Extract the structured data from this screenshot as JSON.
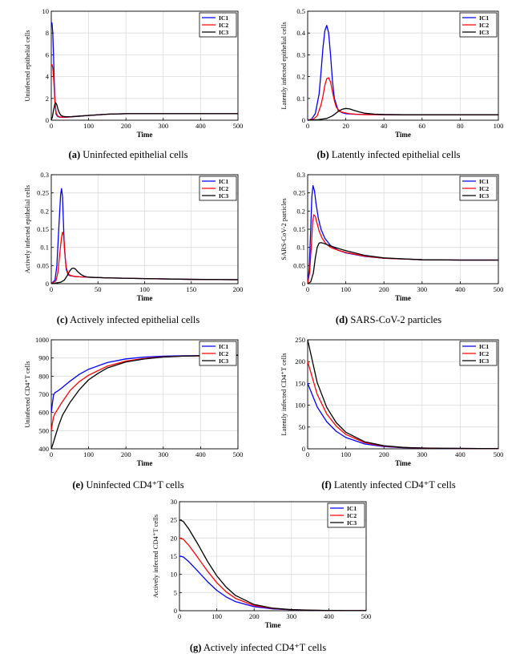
{
  "colors": {
    "IC1": "#0000ff",
    "IC2": "#ff0000",
    "IC3": "#000000"
  },
  "chart_data": [
    {
      "id": "a",
      "type": "line",
      "caption_label": "(a)",
      "caption_text": "Uninfected epithelial cells",
      "xlabel": "Time",
      "ylabel": "Uninfected epithelial cells",
      "xlim": [
        0,
        500
      ],
      "ylim": [
        0,
        10
      ],
      "xticks": [
        0,
        100,
        200,
        300,
        400,
        500
      ],
      "yticks": [
        0,
        2,
        4,
        6,
        8,
        10
      ],
      "legend": [
        "IC1",
        "IC2",
        "IC3"
      ],
      "series": [
        {
          "name": "IC1",
          "x": [
            0,
            2,
            4,
            6,
            8,
            10,
            13,
            17,
            22,
            30,
            45,
            70,
            100,
            150,
            200,
            300,
            400,
            500
          ],
          "y": [
            9.0,
            8.9,
            8.0,
            6.0,
            3.5,
            1.6,
            0.55,
            0.35,
            0.28,
            0.27,
            0.29,
            0.35,
            0.43,
            0.55,
            0.6,
            0.6,
            0.6,
            0.6
          ]
        },
        {
          "name": "IC2",
          "x": [
            0,
            2,
            4,
            6,
            8,
            10,
            13,
            17,
            22,
            30,
            45,
            70,
            100,
            150,
            200,
            300,
            400,
            500
          ],
          "y": [
            5.0,
            5.1,
            4.8,
            4.0,
            2.8,
            1.6,
            0.7,
            0.4,
            0.3,
            0.28,
            0.3,
            0.36,
            0.44,
            0.55,
            0.6,
            0.6,
            0.6,
            0.6
          ]
        },
        {
          "name": "IC3",
          "x": [
            0,
            3,
            6,
            9,
            12,
            15,
            18,
            22,
            26,
            32,
            40,
            55,
            75,
            100,
            150,
            200,
            300,
            400,
            500
          ],
          "y": [
            0.0,
            0.3,
            0.9,
            1.4,
            1.6,
            1.4,
            1.0,
            0.65,
            0.45,
            0.35,
            0.32,
            0.33,
            0.38,
            0.44,
            0.55,
            0.6,
            0.6,
            0.6,
            0.6
          ]
        }
      ]
    },
    {
      "id": "b",
      "type": "line",
      "caption_label": "(b)",
      "caption_text": "Latently infected epithelial cells",
      "xlabel": "Time",
      "ylabel": "Latently infected epithelial cells",
      "xlim": [
        0,
        100
      ],
      "ylim": [
        0,
        0.5
      ],
      "xticks": [
        0,
        20,
        40,
        60,
        80,
        100
      ],
      "yticks": [
        0,
        0.1,
        0.2,
        0.3,
        0.4,
        0.5
      ],
      "legend": [
        "IC1",
        "IC2",
        "IC3"
      ],
      "series": [
        {
          "name": "IC1",
          "x": [
            0,
            2,
            4,
            6,
            7,
            8,
            9,
            10,
            11,
            12,
            13,
            14,
            16,
            18,
            20,
            25,
            30,
            50,
            100
          ],
          "y": [
            0.0,
            0.005,
            0.03,
            0.12,
            0.22,
            0.33,
            0.41,
            0.435,
            0.4,
            0.3,
            0.18,
            0.1,
            0.045,
            0.035,
            0.03,
            0.027,
            0.026,
            0.025,
            0.025
          ]
        },
        {
          "name": "IC2",
          "x": [
            0,
            3,
            5,
            7,
            8,
            9,
            10,
            11,
            12,
            13,
            14,
            15,
            17,
            19,
            22,
            26,
            30,
            50,
            100
          ],
          "y": [
            0.0,
            0.005,
            0.02,
            0.07,
            0.11,
            0.16,
            0.19,
            0.195,
            0.175,
            0.13,
            0.09,
            0.06,
            0.04,
            0.035,
            0.03,
            0.027,
            0.026,
            0.025,
            0.025
          ]
        },
        {
          "name": "IC3",
          "x": [
            0,
            5,
            10,
            13,
            16,
            18,
            20,
            22,
            24,
            27,
            30,
            35,
            40,
            50,
            100
          ],
          "y": [
            0.0,
            0.002,
            0.008,
            0.02,
            0.04,
            0.05,
            0.054,
            0.052,
            0.046,
            0.038,
            0.032,
            0.028,
            0.026,
            0.025,
            0.025
          ]
        }
      ]
    },
    {
      "id": "c",
      "type": "line",
      "caption_label": "(c)",
      "caption_text": "Actively infected epithelial cells",
      "xlabel": "Time",
      "ylabel": "Actively infected epithelial cells",
      "xlim": [
        0,
        200
      ],
      "ylim": [
        0,
        0.3
      ],
      "xticks": [
        0,
        50,
        100,
        150,
        200
      ],
      "yticks": [
        0,
        0.05,
        0.1,
        0.15,
        0.2,
        0.25,
        0.3
      ],
      "legend": [
        "IC1",
        "IC2",
        "IC3"
      ],
      "series": [
        {
          "name": "IC1",
          "x": [
            0,
            4,
            6,
            8,
            10,
            11,
            12,
            13,
            14,
            16,
            18,
            20,
            25,
            30,
            40,
            60,
            100,
            150,
            200
          ],
          "y": [
            0.0,
            0.01,
            0.05,
            0.15,
            0.245,
            0.262,
            0.24,
            0.17,
            0.1,
            0.04,
            0.025,
            0.022,
            0.02,
            0.019,
            0.018,
            0.016,
            0.014,
            0.012,
            0.011
          ]
        },
        {
          "name": "IC2",
          "x": [
            0,
            5,
            7,
            9,
            11,
            12,
            13,
            14,
            15,
            16,
            18,
            20,
            25,
            30,
            40,
            60,
            100,
            150,
            200
          ],
          "y": [
            0.0,
            0.008,
            0.03,
            0.08,
            0.128,
            0.142,
            0.135,
            0.11,
            0.07,
            0.045,
            0.028,
            0.023,
            0.02,
            0.019,
            0.018,
            0.016,
            0.014,
            0.012,
            0.011
          ]
        },
        {
          "name": "IC3",
          "x": [
            0,
            10,
            14,
            17,
            20,
            22,
            24,
            26,
            28,
            32,
            36,
            40,
            50,
            60,
            100,
            150,
            200
          ],
          "y": [
            0.0,
            0.004,
            0.01,
            0.022,
            0.036,
            0.042,
            0.043,
            0.04,
            0.034,
            0.025,
            0.02,
            0.018,
            0.017,
            0.016,
            0.014,
            0.012,
            0.011
          ]
        }
      ]
    },
    {
      "id": "d",
      "type": "line",
      "caption_label": "(d)",
      "caption_text": "SARS-CoV-2 particles",
      "xlabel": "Time",
      "ylabel": "SARS-CoV-2 particles",
      "xlim": [
        0,
        500
      ],
      "ylim": [
        0,
        0.3
      ],
      "xticks": [
        0,
        100,
        200,
        300,
        400,
        500
      ],
      "yticks": [
        0,
        0.05,
        0.1,
        0.15,
        0.2,
        0.25,
        0.3
      ],
      "legend": [
        "IC1",
        "IC2",
        "IC3"
      ],
      "series": [
        {
          "name": "IC1",
          "x": [
            0,
            4,
            8,
            11,
            14,
            18,
            22,
            28,
            35,
            45,
            60,
            80,
            100,
            150,
            200,
            300,
            400,
            500
          ],
          "y": [
            0.0,
            0.04,
            0.15,
            0.24,
            0.27,
            0.255,
            0.22,
            0.18,
            0.15,
            0.125,
            0.105,
            0.092,
            0.085,
            0.075,
            0.07,
            0.066,
            0.065,
            0.065
          ]
        },
        {
          "name": "IC2",
          "x": [
            0,
            5,
            10,
            13,
            16,
            20,
            25,
            30,
            38,
            48,
            60,
            80,
            100,
            150,
            200,
            300,
            400,
            500
          ],
          "y": [
            0.0,
            0.03,
            0.11,
            0.17,
            0.19,
            0.185,
            0.165,
            0.145,
            0.125,
            0.11,
            0.1,
            0.092,
            0.086,
            0.076,
            0.07,
            0.066,
            0.065,
            0.065
          ]
        },
        {
          "name": "IC3",
          "x": [
            0,
            8,
            15,
            20,
            25,
            30,
            35,
            42,
            50,
            60,
            80,
            100,
            150,
            200,
            300,
            400,
            500
          ],
          "y": [
            0.0,
            0.005,
            0.03,
            0.07,
            0.1,
            0.112,
            0.113,
            0.111,
            0.108,
            0.104,
            0.097,
            0.091,
            0.078,
            0.071,
            0.066,
            0.065,
            0.065
          ]
        }
      ]
    },
    {
      "id": "e",
      "type": "line",
      "caption_label": "(e)",
      "caption_text": "Uninfected CD4⁺T cells",
      "xlabel": "Time",
      "ylabel": "Uninfected CD4⁺T cells",
      "xlim": [
        0,
        500
      ],
      "ylim": [
        400,
        1000
      ],
      "xticks": [
        0,
        100,
        200,
        300,
        400,
        500
      ],
      "yticks": [
        400,
        500,
        600,
        700,
        800,
        900,
        1000
      ],
      "legend": [
        "IC1",
        "IC2",
        "IC3"
      ],
      "series": [
        {
          "name": "IC1",
          "x": [
            0,
            3,
            6,
            10,
            15,
            25,
            50,
            75,
            100,
            150,
            200,
            250,
            300,
            350,
            400,
            450,
            500
          ],
          "y": [
            600,
            650,
            695,
            710,
            715,
            730,
            772,
            810,
            838,
            875,
            895,
            905,
            910,
            912,
            913,
            914,
            915
          ]
        },
        {
          "name": "IC2",
          "x": [
            0,
            3,
            6,
            10,
            15,
            25,
            50,
            75,
            100,
            150,
            200,
            250,
            300,
            350,
            400,
            450,
            500
          ],
          "y": [
            500,
            540,
            575,
            595,
            610,
            645,
            720,
            770,
            805,
            855,
            883,
            898,
            906,
            910,
            912,
            914,
            915
          ]
        },
        {
          "name": "IC3",
          "x": [
            0,
            5,
            10,
            20,
            30,
            50,
            75,
            100,
            125,
            150,
            200,
            250,
            300,
            350,
            400,
            450,
            500
          ],
          "y": [
            400,
            430,
            465,
            530,
            585,
            655,
            725,
            780,
            815,
            845,
            878,
            895,
            905,
            910,
            912,
            914,
            915
          ]
        }
      ]
    },
    {
      "id": "f",
      "type": "line",
      "caption_label": "(f)",
      "caption_text": "Latently infected CD4⁺T cells",
      "xlabel": "Time",
      "ylabel": "Latently infected CD4⁺T cells",
      "xlim": [
        0,
        500
      ],
      "ylim": [
        0,
        250
      ],
      "xticks": [
        0,
        100,
        200,
        300,
        400,
        500
      ],
      "yticks": [
        0,
        50,
        100,
        150,
        200,
        250
      ],
      "legend": [
        "IC1",
        "IC2",
        "IC3"
      ],
      "series": [
        {
          "name": "IC1",
          "x": [
            0,
            25,
            50,
            75,
            100,
            150,
            200,
            250,
            300,
            350,
            400,
            450,
            500
          ],
          "y": [
            150,
            96,
            62,
            40,
            26,
            11,
            5,
            2.5,
            1.5,
            1,
            0.8,
            0.6,
            0.5
          ]
        },
        {
          "name": "IC2",
          "x": [
            0,
            25,
            50,
            75,
            100,
            150,
            200,
            250,
            300,
            350,
            400,
            450,
            500
          ],
          "y": [
            200,
            125,
            80,
            52,
            33,
            14,
            6,
            3,
            1.7,
            1.1,
            0.8,
            0.6,
            0.5
          ]
        },
        {
          "name": "IC3",
          "x": [
            0,
            25,
            50,
            75,
            100,
            150,
            200,
            250,
            300,
            350,
            400,
            450,
            500
          ],
          "y": [
            250,
            152,
            95,
            60,
            38,
            16,
            7,
            3.3,
            1.9,
            1.2,
            0.9,
            0.6,
            0.5
          ]
        }
      ]
    },
    {
      "id": "g",
      "type": "line",
      "caption_label": "(g)",
      "caption_text": "Actively infected CD4⁺T cells",
      "xlabel": "Time",
      "ylabel": "Actively infected CD4⁺T cells",
      "xlim": [
        0,
        500
      ],
      "ylim": [
        0,
        30
      ],
      "xticks": [
        0,
        100,
        200,
        300,
        400,
        500
      ],
      "yticks": [
        0,
        5,
        10,
        15,
        20,
        25,
        30
      ],
      "legend": [
        "IC1",
        "IC2",
        "IC3"
      ],
      "series": [
        {
          "name": "IC1",
          "x": [
            0,
            10,
            25,
            50,
            75,
            100,
            125,
            150,
            200,
            250,
            300,
            350,
            400,
            450,
            500
          ],
          "y": [
            15,
            14.8,
            13.5,
            10.8,
            8.0,
            5.6,
            3.8,
            2.5,
            1.1,
            0.5,
            0.25,
            0.12,
            0.06,
            0.03,
            0.02
          ]
        },
        {
          "name": "IC2",
          "x": [
            0,
            10,
            25,
            50,
            75,
            100,
            125,
            150,
            200,
            250,
            300,
            350,
            400,
            450,
            500
          ],
          "y": [
            20,
            19.7,
            18.0,
            14.5,
            10.9,
            7.7,
            5.2,
            3.4,
            1.4,
            0.6,
            0.27,
            0.13,
            0.06,
            0.03,
            0.02
          ]
        },
        {
          "name": "IC3",
          "x": [
            0,
            10,
            25,
            50,
            75,
            100,
            125,
            150,
            200,
            250,
            300,
            350,
            400,
            450,
            500
          ],
          "y": [
            25,
            24.6,
            22.5,
            18.2,
            13.6,
            9.6,
            6.5,
            4.2,
            1.7,
            0.7,
            0.3,
            0.14,
            0.07,
            0.03,
            0.02
          ]
        }
      ]
    }
  ]
}
